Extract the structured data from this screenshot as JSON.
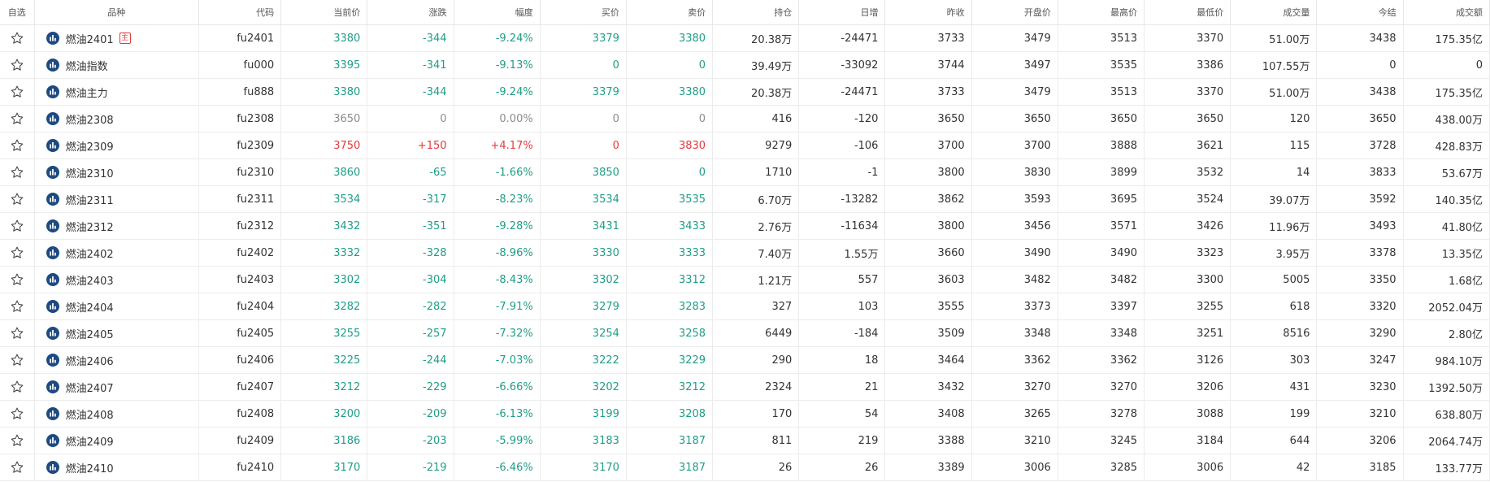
{
  "colors": {
    "up": "#e5393d",
    "down": "#1f9d87",
    "flat": "#8c8c8c",
    "icon": "#1d4a80"
  },
  "columns": [
    "自选",
    "品种",
    "代码",
    "当前价",
    "涨跌",
    "幅度",
    "买价",
    "卖价",
    "持仓",
    "日增",
    "昨收",
    "开盘价",
    "最高价",
    "最低价",
    "成交量",
    "今结",
    "成交额"
  ],
  "rows": [
    {
      "name": "燃油2401",
      "badge": "主",
      "code": "fu2401",
      "price": "3380",
      "change": "-344",
      "pct": "-9.24%",
      "bid": "3379",
      "ask": "3380",
      "oi": "20.38万",
      "daily": "-24471",
      "prev": "3733",
      "open": "3479",
      "high": "3513",
      "low": "3370",
      "vol": "51.00万",
      "settle": "3438",
      "amount": "175.35亿",
      "trend": "down",
      "bid_trend": "down",
      "ask_trend": "down"
    },
    {
      "name": "燃油指数",
      "badge": "",
      "code": "fu000",
      "price": "3395",
      "change": "-341",
      "pct": "-9.13%",
      "bid": "0",
      "ask": "0",
      "oi": "39.49万",
      "daily": "-33092",
      "prev": "3744",
      "open": "3497",
      "high": "3535",
      "low": "3386",
      "vol": "107.55万",
      "settle": "0",
      "amount": "0",
      "trend": "down",
      "bid_trend": "down",
      "ask_trend": "down"
    },
    {
      "name": "燃油主力",
      "badge": "",
      "code": "fu888",
      "price": "3380",
      "change": "-344",
      "pct": "-9.24%",
      "bid": "3379",
      "ask": "3380",
      "oi": "20.38万",
      "daily": "-24471",
      "prev": "3733",
      "open": "3479",
      "high": "3513",
      "low": "3370",
      "vol": "51.00万",
      "settle": "3438",
      "amount": "175.35亿",
      "trend": "down",
      "bid_trend": "down",
      "ask_trend": "down"
    },
    {
      "name": "燃油2308",
      "badge": "",
      "code": "fu2308",
      "price": "3650",
      "change": "0",
      "pct": "0.00%",
      "bid": "0",
      "ask": "0",
      "oi": "416",
      "daily": "-120",
      "prev": "3650",
      "open": "3650",
      "high": "3650",
      "low": "3650",
      "vol": "120",
      "settle": "3650",
      "amount": "438.00万",
      "trend": "flat",
      "bid_trend": "flat",
      "ask_trend": "flat"
    },
    {
      "name": "燃油2309",
      "badge": "",
      "code": "fu2309",
      "price": "3750",
      "change": "+150",
      "pct": "+4.17%",
      "bid": "0",
      "ask": "3830",
      "oi": "9279",
      "daily": "-106",
      "prev": "3700",
      "open": "3700",
      "high": "3888",
      "low": "3621",
      "vol": "115",
      "settle": "3728",
      "amount": "428.83万",
      "trend": "up",
      "bid_trend": "up",
      "ask_trend": "up"
    },
    {
      "name": "燃油2310",
      "badge": "",
      "code": "fu2310",
      "price": "3860",
      "change": "-65",
      "pct": "-1.66%",
      "bid": "3850",
      "ask": "0",
      "oi": "1710",
      "daily": "-1",
      "prev": "3800",
      "open": "3830",
      "high": "3899",
      "low": "3532",
      "vol": "14",
      "settle": "3833",
      "amount": "53.67万",
      "trend": "down",
      "bid_trend": "down",
      "ask_trend": "down"
    },
    {
      "name": "燃油2311",
      "badge": "",
      "code": "fu2311",
      "price": "3534",
      "change": "-317",
      "pct": "-8.23%",
      "bid": "3534",
      "ask": "3535",
      "oi": "6.70万",
      "daily": "-13282",
      "prev": "3862",
      "open": "3593",
      "high": "3695",
      "low": "3524",
      "vol": "39.07万",
      "settle": "3592",
      "amount": "140.35亿",
      "trend": "down",
      "bid_trend": "down",
      "ask_trend": "down"
    },
    {
      "name": "燃油2312",
      "badge": "",
      "code": "fu2312",
      "price": "3432",
      "change": "-351",
      "pct": "-9.28%",
      "bid": "3431",
      "ask": "3433",
      "oi": "2.76万",
      "daily": "-11634",
      "prev": "3800",
      "open": "3456",
      "high": "3571",
      "low": "3426",
      "vol": "11.96万",
      "settle": "3493",
      "amount": "41.80亿",
      "trend": "down",
      "bid_trend": "down",
      "ask_trend": "down"
    },
    {
      "name": "燃油2402",
      "badge": "",
      "code": "fu2402",
      "price": "3332",
      "change": "-328",
      "pct": "-8.96%",
      "bid": "3330",
      "ask": "3333",
      "oi": "7.40万",
      "daily": "1.55万",
      "prev": "3660",
      "open": "3490",
      "high": "3490",
      "low": "3323",
      "vol": "3.95万",
      "settle": "3378",
      "amount": "13.35亿",
      "trend": "down",
      "bid_trend": "down",
      "ask_trend": "down"
    },
    {
      "name": "燃油2403",
      "badge": "",
      "code": "fu2403",
      "price": "3302",
      "change": "-304",
      "pct": "-8.43%",
      "bid": "3302",
      "ask": "3312",
      "oi": "1.21万",
      "daily": "557",
      "prev": "3603",
      "open": "3482",
      "high": "3482",
      "low": "3300",
      "vol": "5005",
      "settle": "3350",
      "amount": "1.68亿",
      "trend": "down",
      "bid_trend": "down",
      "ask_trend": "down"
    },
    {
      "name": "燃油2404",
      "badge": "",
      "code": "fu2404",
      "price": "3282",
      "change": "-282",
      "pct": "-7.91%",
      "bid": "3279",
      "ask": "3283",
      "oi": "327",
      "daily": "103",
      "prev": "3555",
      "open": "3373",
      "high": "3397",
      "low": "3255",
      "vol": "618",
      "settle": "3320",
      "amount": "2052.04万",
      "trend": "down",
      "bid_trend": "down",
      "ask_trend": "down"
    },
    {
      "name": "燃油2405",
      "badge": "",
      "code": "fu2405",
      "price": "3255",
      "change": "-257",
      "pct": "-7.32%",
      "bid": "3254",
      "ask": "3258",
      "oi": "6449",
      "daily": "-184",
      "prev": "3509",
      "open": "3348",
      "high": "3348",
      "low": "3251",
      "vol": "8516",
      "settle": "3290",
      "amount": "2.80亿",
      "trend": "down",
      "bid_trend": "down",
      "ask_trend": "down"
    },
    {
      "name": "燃油2406",
      "badge": "",
      "code": "fu2406",
      "price": "3225",
      "change": "-244",
      "pct": "-7.03%",
      "bid": "3222",
      "ask": "3229",
      "oi": "290",
      "daily": "18",
      "prev": "3464",
      "open": "3362",
      "high": "3362",
      "low": "3126",
      "vol": "303",
      "settle": "3247",
      "amount": "984.10万",
      "trend": "down",
      "bid_trend": "down",
      "ask_trend": "down"
    },
    {
      "name": "燃油2407",
      "badge": "",
      "code": "fu2407",
      "price": "3212",
      "change": "-229",
      "pct": "-6.66%",
      "bid": "3202",
      "ask": "3212",
      "oi": "2324",
      "daily": "21",
      "prev": "3432",
      "open": "3270",
      "high": "3270",
      "low": "3206",
      "vol": "431",
      "settle": "3230",
      "amount": "1392.50万",
      "trend": "down",
      "bid_trend": "down",
      "ask_trend": "down"
    },
    {
      "name": "燃油2408",
      "badge": "",
      "code": "fu2408",
      "price": "3200",
      "change": "-209",
      "pct": "-6.13%",
      "bid": "3199",
      "ask": "3208",
      "oi": "170",
      "daily": "54",
      "prev": "3408",
      "open": "3265",
      "high": "3278",
      "low": "3088",
      "vol": "199",
      "settle": "3210",
      "amount": "638.80万",
      "trend": "down",
      "bid_trend": "down",
      "ask_trend": "down"
    },
    {
      "name": "燃油2409",
      "badge": "",
      "code": "fu2409",
      "price": "3186",
      "change": "-203",
      "pct": "-5.99%",
      "bid": "3183",
      "ask": "3187",
      "oi": "811",
      "daily": "219",
      "prev": "3388",
      "open": "3210",
      "high": "3245",
      "low": "3184",
      "vol": "644",
      "settle": "3206",
      "amount": "2064.74万",
      "trend": "down",
      "bid_trend": "down",
      "ask_trend": "down"
    },
    {
      "name": "燃油2410",
      "badge": "",
      "code": "fu2410",
      "price": "3170",
      "change": "-219",
      "pct": "-6.46%",
      "bid": "3170",
      "ask": "3187",
      "oi": "26",
      "daily": "26",
      "prev": "3389",
      "open": "3006",
      "high": "3285",
      "low": "3006",
      "vol": "42",
      "settle": "3185",
      "amount": "133.77万",
      "trend": "down",
      "bid_trend": "down",
      "ask_trend": "down"
    }
  ]
}
